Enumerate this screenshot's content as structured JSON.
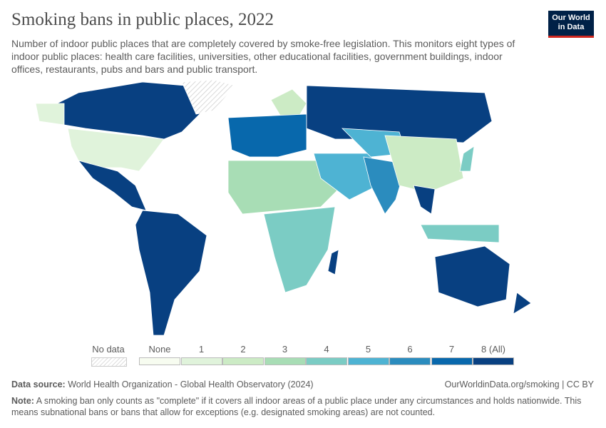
{
  "title": "Smoking bans in public places, 2022",
  "subtitle": "Number of indoor public places that are completely covered by smoke-free legislation. This monitors eight types of indoor public places: health care facilities, universities, other educational facilities, government buildings, indoor offices, restaurants, pubs and bars and public transport.",
  "logo": {
    "line1": "Our World",
    "line2": "in Data",
    "bg": "#002147",
    "accent": "#ce261e"
  },
  "legend": {
    "no_data_label": "No data",
    "bins": [
      {
        "label": "None",
        "color": "#f7fcf0"
      },
      {
        "label": "1",
        "color": "#e0f3db"
      },
      {
        "label": "2",
        "color": "#ccebc5"
      },
      {
        "label": "3",
        "color": "#a8ddb5"
      },
      {
        "label": "4",
        "color": "#7bccc4"
      },
      {
        "label": "5",
        "color": "#4eb3d3"
      },
      {
        "label": "6",
        "color": "#2b8cbe"
      },
      {
        "label": "7",
        "color": "#0868ac"
      },
      {
        "label": "8 (All)",
        "color": "#084081"
      }
    ]
  },
  "regions": [
    {
      "name": "Canada",
      "value": 8
    },
    {
      "name": "Alaska",
      "value": 1
    },
    {
      "name": "Greenland",
      "value": null
    },
    {
      "name": "United States",
      "value": 1
    },
    {
      "name": "Mexico & Central America",
      "value": 8
    },
    {
      "name": "South America",
      "value": 8
    },
    {
      "name": "Scandinavia",
      "value": 2
    },
    {
      "name": "Europe",
      "value": 7
    },
    {
      "name": "Russia",
      "value": 8
    },
    {
      "name": "North Africa",
      "value": 3
    },
    {
      "name": "Southern Africa",
      "value": 4
    },
    {
      "name": "Middle East",
      "value": 5
    },
    {
      "name": "Central Asia",
      "value": 5
    },
    {
      "name": "India",
      "value": 6
    },
    {
      "name": "China",
      "value": 2
    },
    {
      "name": "Southeast Asia",
      "value": 8
    },
    {
      "name": "Indonesia",
      "value": 4
    },
    {
      "name": "Japan",
      "value": 4
    },
    {
      "name": "Australia",
      "value": 8
    },
    {
      "name": "New Zealand",
      "value": 8
    },
    {
      "name": "Madagascar",
      "value": 8
    }
  ],
  "footer": {
    "source_label": "Data source:",
    "source": "World Health Organization - Global Health Observatory (2024)",
    "url": "OurWorldinData.org/smoking | CC BY",
    "note_label": "Note:",
    "note": "A smoking ban only counts as \"complete\" if it covers all indoor areas of a public place under any circumstances and holds nationwide. This means subnational bans or bans that allow for exceptions (e.g. designated smoking areas) are not counted."
  }
}
